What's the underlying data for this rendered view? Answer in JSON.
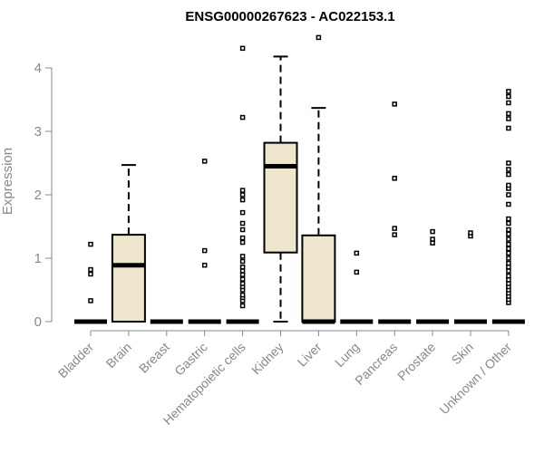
{
  "chart_data": {
    "type": "box",
    "title": "ENSG00000267623 - AC022153.1",
    "xlabel": "",
    "ylabel": "Expression",
    "ylim": [
      0,
      4.5
    ],
    "yticks": [
      "0",
      "1",
      "2",
      "3",
      "4"
    ],
    "colors": {
      "box_fill": "#ede6cc",
      "box_stroke": "#000000",
      "axis": "#888888",
      "text": "#888888"
    },
    "categories": [
      "Bladder",
      "Brain",
      "Breast",
      "Gastric",
      "Hematopoietic cells",
      "Kidney",
      "Liver",
      "Lung",
      "Pancreas",
      "Prostate",
      "Skin",
      "Unknown / Other"
    ],
    "boxes": [
      {
        "q1": 0,
        "median": 0,
        "q3": 0,
        "whisker_low": 0,
        "whisker_high": 0,
        "outliers": [
          0.33,
          0.75,
          0.82,
          1.22
        ]
      },
      {
        "q1": 0,
        "median": 0.89,
        "q3": 1.37,
        "whisker_low": 0,
        "whisker_high": 2.47,
        "outliers": []
      },
      {
        "q1": 0,
        "median": 0,
        "q3": 0,
        "whisker_low": 0,
        "whisker_high": 0,
        "outliers": []
      },
      {
        "q1": 0,
        "median": 0,
        "q3": 0,
        "whisker_low": 0,
        "whisker_high": 0,
        "outliers": [
          0.89,
          1.12,
          2.53
        ]
      },
      {
        "q1": 0,
        "median": 0,
        "q3": 0,
        "whisker_low": 0,
        "whisker_high": 0,
        "outliers": [
          0.25,
          0.33,
          0.38,
          0.42,
          0.5,
          0.55,
          0.6,
          0.67,
          0.74,
          0.8,
          0.86,
          0.95,
          1.03,
          1.25,
          1.32,
          1.45,
          1.55,
          1.72,
          1.92,
          2.0,
          2.07,
          3.22,
          4.31
        ]
      },
      {
        "q1": 1.09,
        "median": 2.45,
        "q3": 2.82,
        "whisker_low": 0,
        "whisker_high": 4.18,
        "outliers": []
      },
      {
        "q1": 0,
        "median": 0,
        "q3": 1.36,
        "whisker_low": 0,
        "whisker_high": 3.37,
        "outliers": [
          4.48
        ]
      },
      {
        "q1": 0,
        "median": 0,
        "q3": 0,
        "whisker_low": 0,
        "whisker_high": 0,
        "outliers": [
          0.78,
          1.08
        ]
      },
      {
        "q1": 0,
        "median": 0,
        "q3": 0,
        "whisker_low": 0,
        "whisker_high": 0,
        "outliers": [
          1.37,
          1.47,
          2.26,
          3.43
        ]
      },
      {
        "q1": 0,
        "median": 0,
        "q3": 0,
        "whisker_low": 0,
        "whisker_high": 0,
        "outliers": [
          1.24,
          1.3,
          1.42
        ]
      },
      {
        "q1": 0,
        "median": 0,
        "q3": 0,
        "whisker_low": 0,
        "whisker_high": 0,
        "outliers": [
          1.35,
          1.4
        ]
      },
      {
        "q1": 0,
        "median": 0,
        "q3": 0,
        "whisker_low": 0,
        "whisker_high": 0,
        "outliers": [
          0.3,
          0.35,
          0.4,
          0.45,
          0.5,
          0.55,
          0.6,
          0.66,
          0.72,
          0.8,
          0.86,
          0.92,
          1.0,
          1.08,
          1.15,
          1.22,
          1.3,
          1.38,
          1.45,
          1.55,
          1.62,
          1.85,
          2.0,
          2.1,
          2.15,
          2.32,
          2.4,
          2.5,
          3.05,
          3.2,
          3.28,
          3.45,
          3.55,
          3.63
        ]
      }
    ]
  }
}
